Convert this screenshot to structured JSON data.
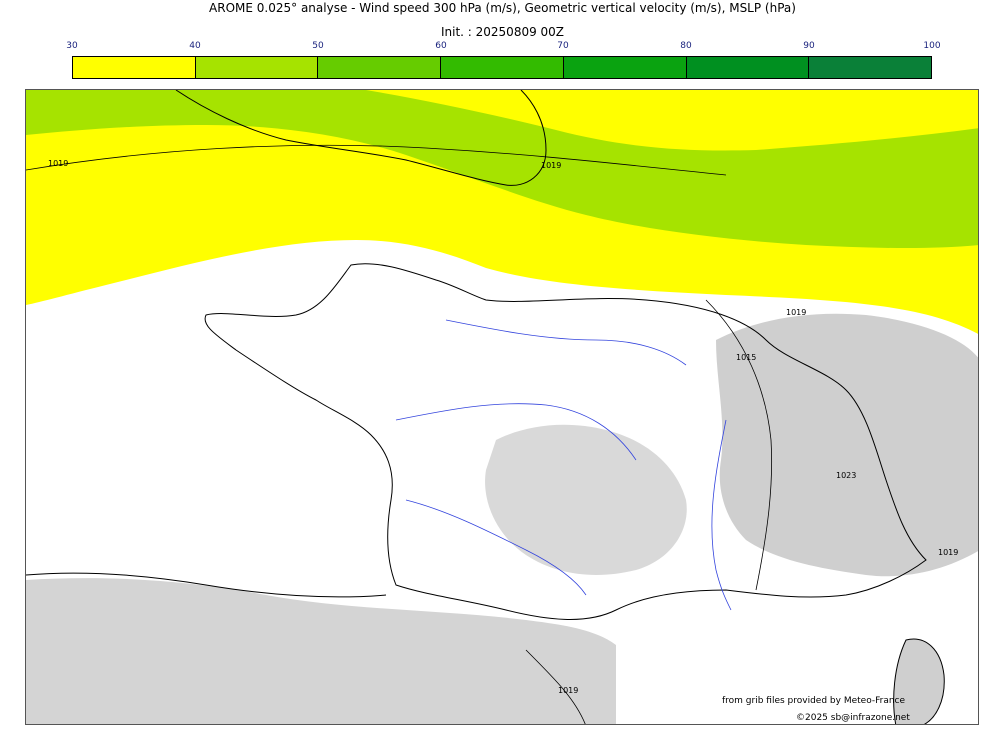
{
  "header": {
    "title": "AROME 0.025° analyse - Wind speed 300 hPa (m/s), Geometric vertical velocity (m/s), MSLP (hPa)",
    "init": "Init. : 20250809 00Z"
  },
  "colorbar": {
    "ticks": [
      "30",
      "40",
      "50",
      "60",
      "70",
      "80",
      "90",
      "100"
    ],
    "colors": [
      "#ffff00",
      "#a6e300",
      "#66cc00",
      "#33bb00",
      "#0aa310",
      "#009020",
      "#0a8038",
      "#0a7048"
    ]
  },
  "map": {
    "isobar_labels": [
      "1019",
      "1019",
      "1019",
      "1015",
      "1023",
      "1019",
      "1019"
    ],
    "colors": {
      "yellow_band": "#ffff00",
      "green_band": "#a6e300",
      "terrain": "#cfcfcf",
      "rivers": "#3344dd",
      "coast": "#000000"
    }
  },
  "credits": {
    "line1": "from grib files provided by Meteo-France",
    "line2": "©2025 sb@infrazone.net"
  }
}
